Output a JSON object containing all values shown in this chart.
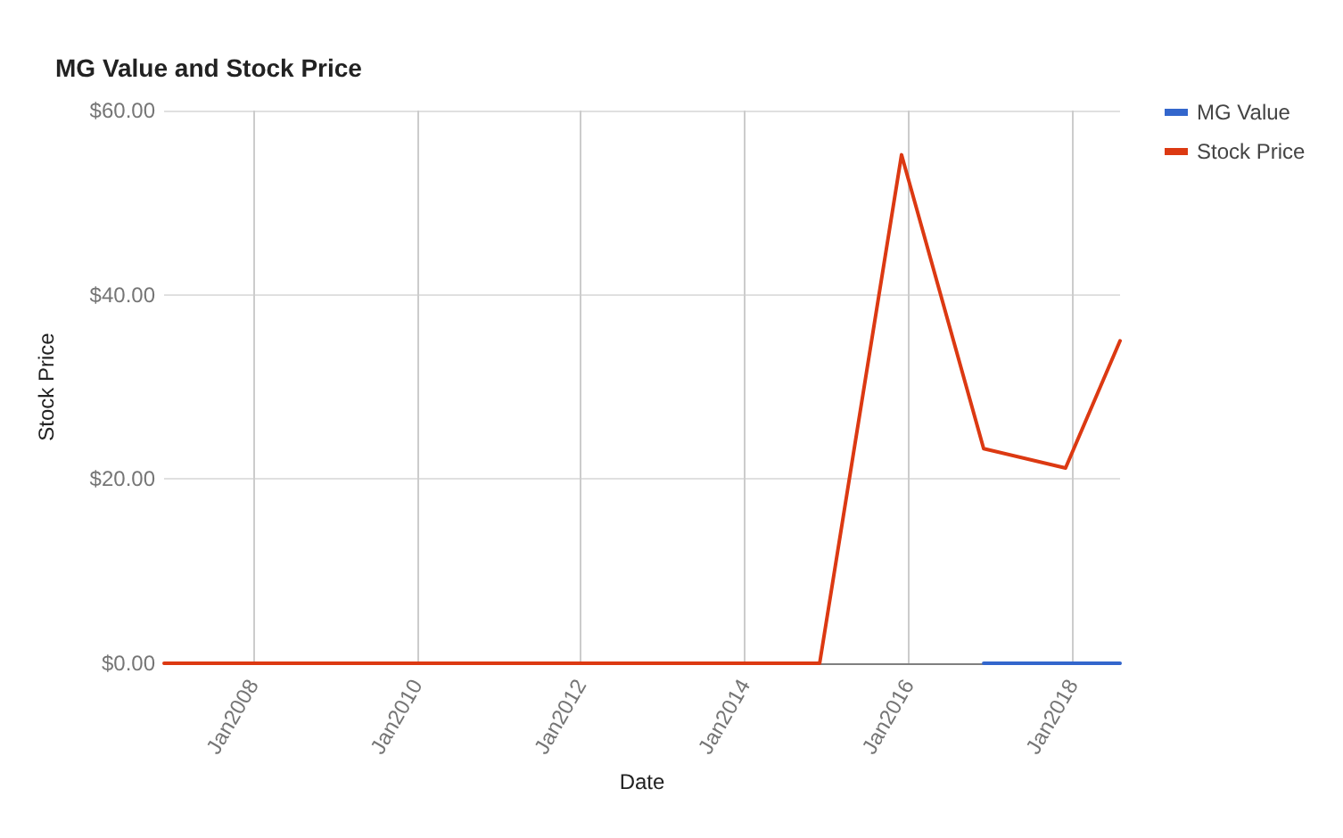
{
  "chart_data": {
    "type": "line",
    "title": "MG Value and Stock Price",
    "xlabel": "Date",
    "ylabel": "Stock Price",
    "x": [
      "2006-12",
      "2007-12",
      "2008-12",
      "2009-12",
      "2010-12",
      "2011-12",
      "2012-12",
      "2013-12",
      "2014-12",
      "2015-12",
      "2016-12",
      "2017-12",
      "2018-08"
    ],
    "series": [
      {
        "name": "MG Value",
        "color": "#3366cc",
        "values": [
          null,
          null,
          null,
          null,
          null,
          null,
          null,
          null,
          null,
          null,
          0,
          0,
          0
        ]
      },
      {
        "name": "Stock Price",
        "color": "#dc3912",
        "values": [
          0,
          0,
          0,
          0,
          0,
          0,
          0,
          0,
          0,
          55.2,
          23.3,
          21.2,
          35
        ]
      }
    ],
    "xlim": [
      "2006-12",
      "2018-08"
    ],
    "xticks": [
      {
        "value": "2008-01",
        "label": "Jan2008"
      },
      {
        "value": "2010-01",
        "label": "Jan2010"
      },
      {
        "value": "2012-01",
        "label": "Jan2012"
      },
      {
        "value": "2014-01",
        "label": "Jan2014"
      },
      {
        "value": "2016-01",
        "label": "Jan2016"
      },
      {
        "value": "2018-01",
        "label": "Jan2018"
      }
    ],
    "ylim": [
      0,
      60
    ],
    "yticks": [
      {
        "value": 0,
        "label": "$0.00"
      },
      {
        "value": 20,
        "label": "$20.00"
      },
      {
        "value": 40,
        "label": "$40.00"
      },
      {
        "value": 60,
        "label": "$60.00"
      }
    ],
    "grid": true,
    "legend": "right",
    "marker": "none",
    "line_style": "solid"
  }
}
